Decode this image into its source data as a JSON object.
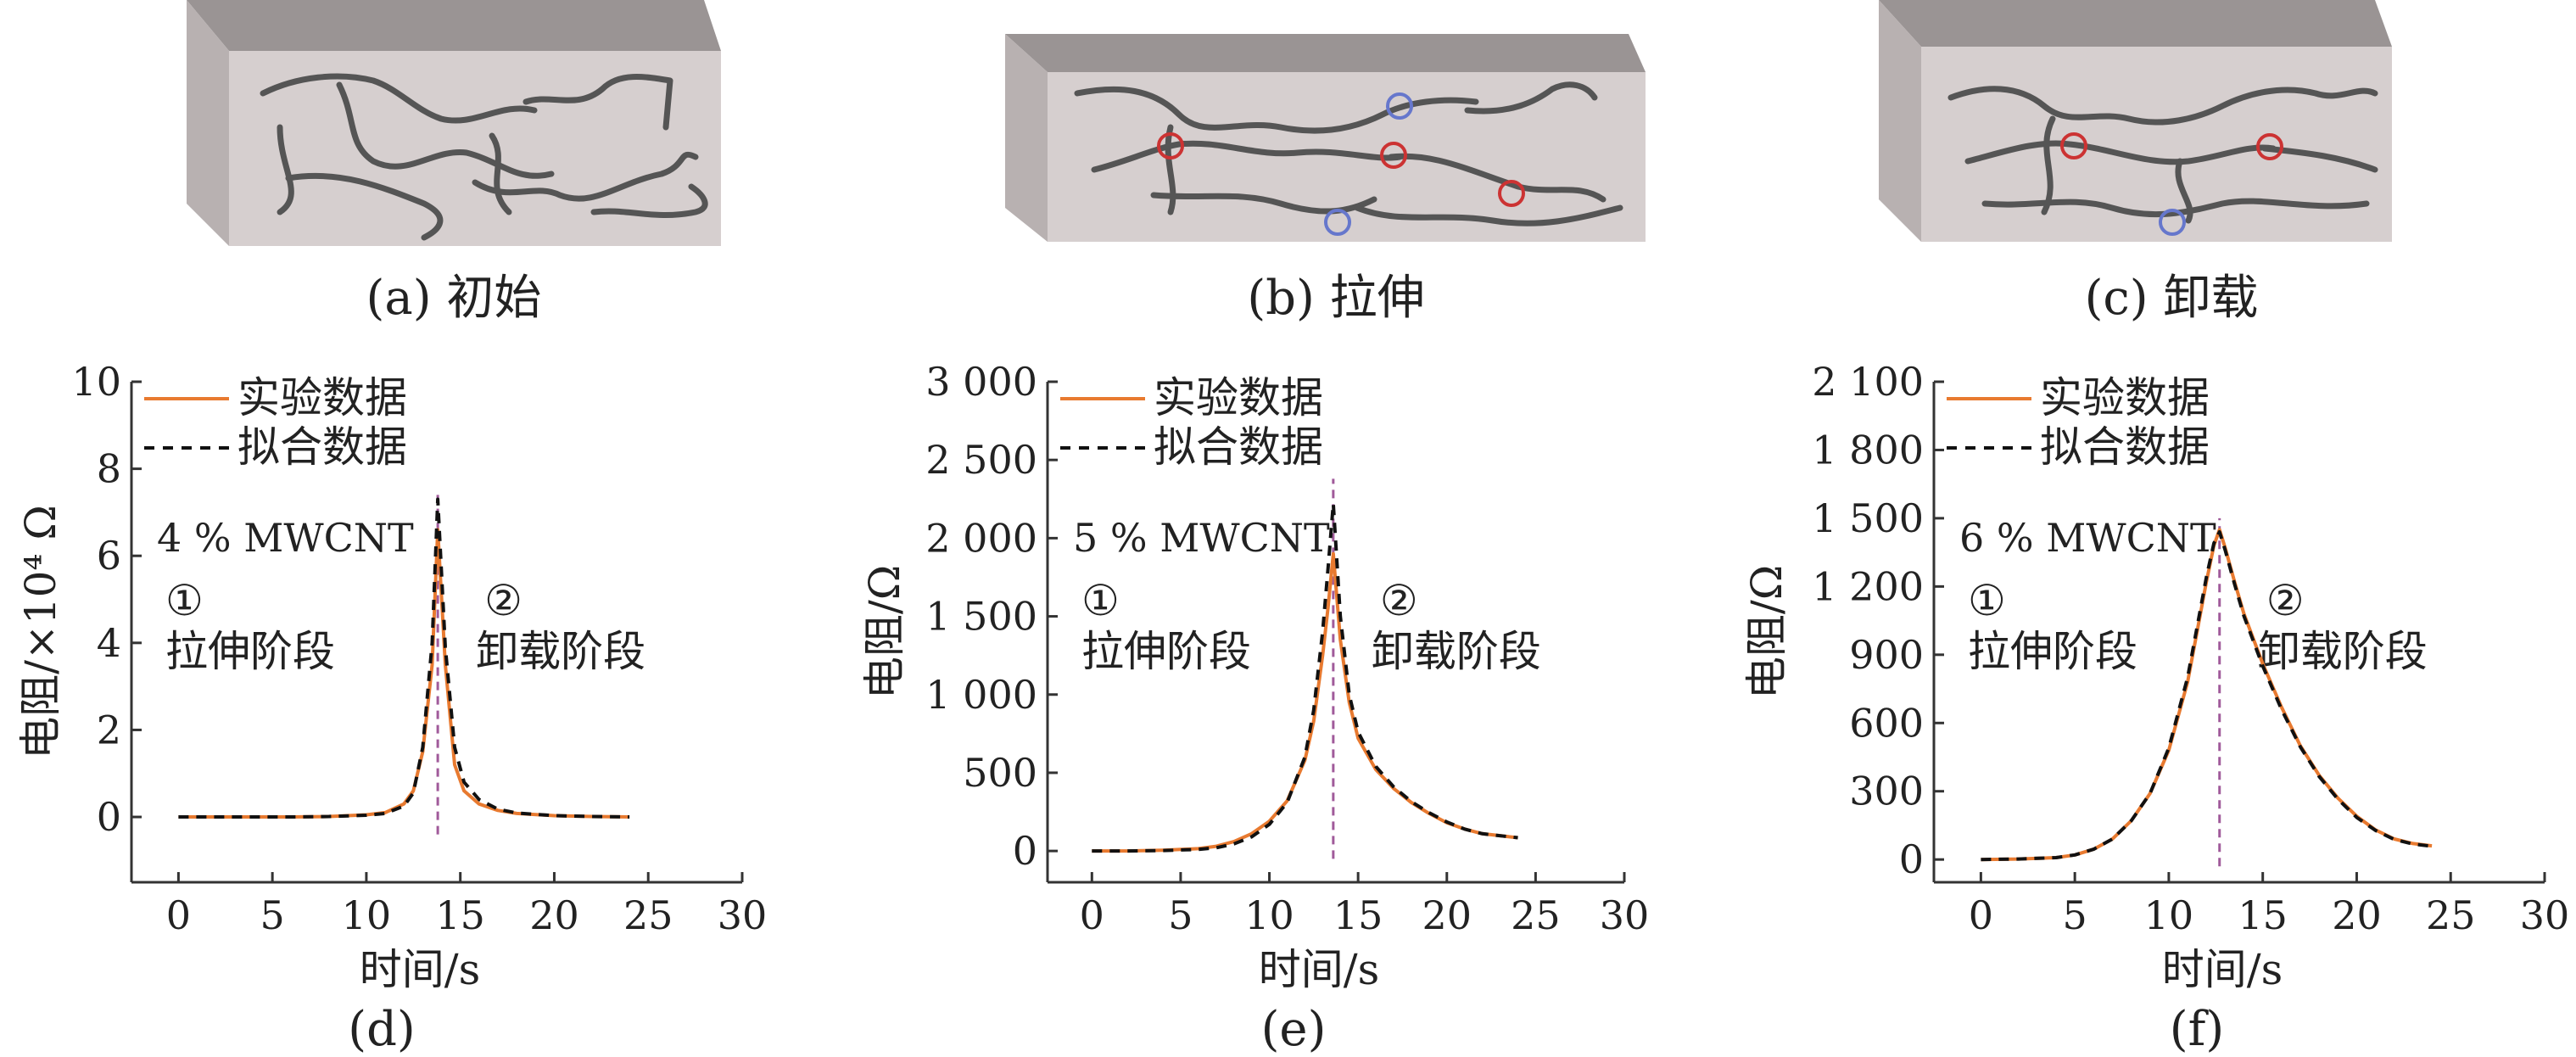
{
  "captions": {
    "a": "(a) 初始",
    "b": "(b) 拉伸",
    "c": "(c) 卸载"
  },
  "colors": {
    "experimental": "#e87a30",
    "fit": "#111111",
    "peak_marker": "#a05a9a",
    "block_front": "#d6cfcf",
    "block_top": "#9a9494",
    "circle_red": "#cc3333",
    "circle_blue": "#6677cc"
  },
  "chart_data": [
    {
      "type": "line",
      "panel_label": "(d)",
      "xlabel": "时间/s",
      "ylabel": "电阻/×10⁴ Ω",
      "annotation": "4 % MWCNT",
      "stage1": [
        "①",
        "拉伸阶段"
      ],
      "stage2": [
        "②",
        "卸载阶段"
      ],
      "legend": [
        "实验数据",
        "拟合数据"
      ],
      "xlim": [
        -2.5,
        30
      ],
      "ylim": [
        -1.5,
        10
      ],
      "xticks": [
        0,
        5,
        10,
        15,
        20,
        25,
        30
      ],
      "yticks": [
        0,
        2,
        4,
        6,
        8,
        10
      ],
      "ytick_labels": [
        "0",
        "2",
        "4",
        "6",
        "8",
        "10"
      ],
      "peak_x": 13.8,
      "peak_marker_range": [
        -0.4,
        7.4
      ],
      "series": [
        {
          "name": "实验数据",
          "style": "solid",
          "x": [
            0,
            2,
            4,
            6,
            8,
            10,
            11,
            12,
            12.5,
            13,
            13.5,
            13.8,
            14.2,
            14.7,
            15.2,
            16,
            17,
            18,
            20,
            22,
            24
          ],
          "y": [
            0,
            0,
            0,
            0,
            0.01,
            0.05,
            0.1,
            0.3,
            0.6,
            1.5,
            3.5,
            6.6,
            3.5,
            1.2,
            0.6,
            0.3,
            0.15,
            0.08,
            0.03,
            0.01,
            0
          ]
        },
        {
          "name": "拟合数据",
          "style": "dashed",
          "x": [
            0,
            2,
            4,
            6,
            8,
            10,
            11,
            12,
            12.5,
            13,
            13.5,
            13.8,
            14.2,
            14.7,
            15.2,
            16,
            17,
            18,
            20,
            22,
            24
          ],
          "y": [
            0,
            0,
            0,
            0,
            0.01,
            0.04,
            0.08,
            0.25,
            0.55,
            1.6,
            4.0,
            7.3,
            3.9,
            1.6,
            0.8,
            0.4,
            0.18,
            0.09,
            0.03,
            0.01,
            0
          ]
        }
      ]
    },
    {
      "type": "line",
      "panel_label": "(e)",
      "xlabel": "时间/s",
      "ylabel": "电阻/Ω",
      "annotation": "5 % MWCNT",
      "stage1": [
        "①",
        "拉伸阶段"
      ],
      "stage2": [
        "②",
        "卸载阶段"
      ],
      "legend": [
        "实验数据",
        "拟合数据"
      ],
      "xlim": [
        -2.5,
        30
      ],
      "ylim": [
        -200,
        3000
      ],
      "xticks": [
        0,
        5,
        10,
        15,
        20,
        25,
        30
      ],
      "yticks": [
        0,
        500,
        1000,
        1500,
        2000,
        2500,
        3000
      ],
      "ytick_labels": [
        "0",
        "500",
        "1 000",
        "1 500",
        "2 000",
        "2 500",
        "3 000"
      ],
      "peak_x": 13.6,
      "peak_marker_range": [
        -50,
        2380
      ],
      "series": [
        {
          "name": "实验数据",
          "style": "solid",
          "x": [
            0,
            2,
            4,
            6,
            7,
            8,
            9,
            10,
            11,
            12,
            12.5,
            13,
            13.3,
            13.6,
            14,
            14.5,
            15,
            16,
            17,
            18,
            19,
            20,
            21,
            22,
            24
          ],
          "y": [
            0,
            0,
            5,
            15,
            30,
            60,
            110,
            190,
            320,
            580,
            830,
            1250,
            1550,
            1900,
            1350,
            950,
            720,
            520,
            400,
            310,
            240,
            180,
            140,
            110,
            85
          ]
        },
        {
          "name": "拟合数据",
          "style": "dashed",
          "x": [
            0,
            2,
            4,
            6,
            7,
            8,
            9,
            10,
            11,
            12,
            12.5,
            13,
            13.3,
            13.6,
            14,
            14.5,
            15,
            16,
            17,
            18,
            19,
            20,
            21,
            22,
            24
          ],
          "y": [
            0,
            0,
            3,
            10,
            20,
            45,
            90,
            170,
            310,
            600,
            900,
            1400,
            1800,
            2220,
            1500,
            1000,
            760,
            540,
            410,
            315,
            245,
            185,
            140,
            110,
            85
          ]
        }
      ]
    },
    {
      "type": "line",
      "panel_label": "(f)",
      "xlabel": "时间/s",
      "ylabel": "电阻/Ω",
      "annotation": "6 % MWCNT",
      "stage1": [
        "①",
        "拉伸阶段"
      ],
      "stage2": [
        "②",
        "卸载阶段"
      ],
      "legend": [
        "实验数据",
        "拟合数据"
      ],
      "xlim": [
        -2.5,
        30
      ],
      "ylim": [
        -100,
        2100
      ],
      "xticks": [
        0,
        5,
        10,
        15,
        20,
        25,
        30
      ],
      "yticks": [
        0,
        300,
        600,
        900,
        1200,
        1500,
        1800,
        2100
      ],
      "ytick_labels": [
        "0",
        "300",
        "600",
        "900",
        "1 200",
        "1 500",
        "1 800",
        "2 100"
      ],
      "peak_x": 12.7,
      "peak_marker_range": [
        -30,
        1500
      ],
      "series": [
        {
          "name": "实验数据",
          "style": "solid",
          "x": [
            0,
            2,
            4,
            5,
            6,
            7,
            8,
            9,
            10,
            11,
            11.5,
            12,
            12.4,
            12.7,
            13,
            13.5,
            14,
            15,
            16,
            17,
            18,
            19,
            20,
            21,
            22,
            23,
            24
          ],
          "y": [
            0,
            2,
            8,
            20,
            45,
            90,
            170,
            290,
            480,
            780,
            1000,
            1220,
            1380,
            1450,
            1370,
            1220,
            1080,
            860,
            670,
            500,
            370,
            270,
            190,
            130,
            90,
            70,
            60
          ]
        },
        {
          "name": "拟合数据",
          "style": "dashed",
          "x": [
            0,
            2,
            4,
            5,
            6,
            7,
            8,
            9,
            10,
            11,
            11.5,
            12,
            12.4,
            12.7,
            13,
            13.5,
            14,
            15,
            16,
            17,
            18,
            19,
            20,
            21,
            22,
            23,
            24
          ],
          "y": [
            0,
            2,
            8,
            20,
            45,
            90,
            170,
            290,
            490,
            800,
            1020,
            1240,
            1390,
            1440,
            1360,
            1210,
            1070,
            850,
            660,
            495,
            365,
            265,
            185,
            128,
            88,
            68,
            58
          ]
        }
      ]
    }
  ]
}
